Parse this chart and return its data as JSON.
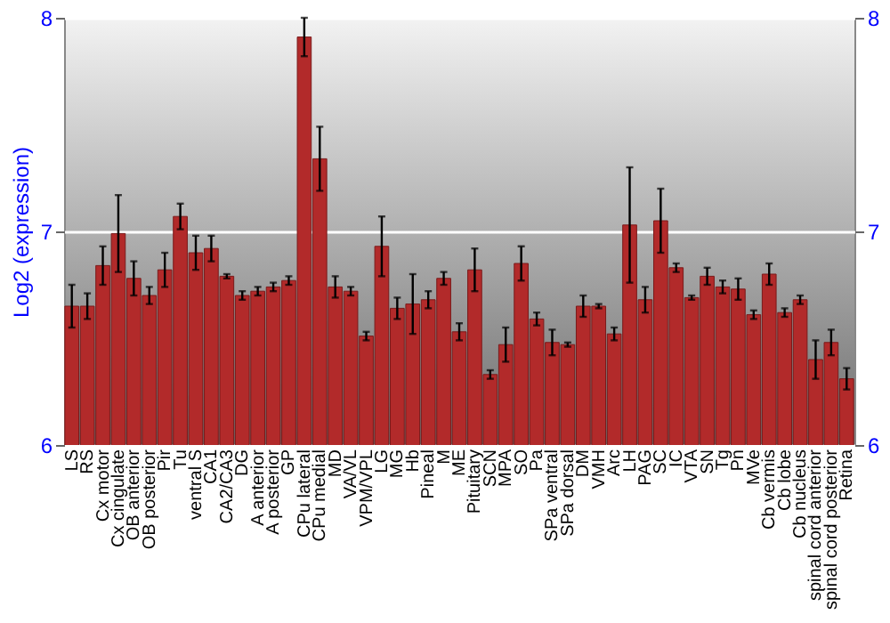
{
  "chart_data": {
    "type": "bar",
    "ylabel": "Log2 (expression)",
    "categories": [
      "LS",
      "RS",
      "Cx motor",
      "Cx cingulate",
      "OB anterior",
      "OB posterior",
      "Pir",
      "Tu",
      "ventral S",
      "CA1",
      "CA2/CA3",
      "DG",
      "A anterior",
      "A posterior",
      "GP",
      "CPu lateral",
      "CPu medial",
      "MD",
      "VA/VL",
      "VPM/VPL",
      "LG",
      "MG",
      "Hb",
      "Pineal",
      "M",
      "ME",
      "Pituitary",
      "SCN",
      "MPA",
      "SO",
      "Pa",
      "SPa ventral",
      "SPa dorsal",
      "DM",
      "VMH",
      "Arc",
      "LH",
      "PAG",
      "SC",
      "IC",
      "VTA",
      "SN",
      "Tg",
      "Pn",
      "MVe",
      "Cb vermis",
      "Cb lobe",
      "Cb nucleus",
      "spinal cord anterior",
      "spinal cord posterior",
      "Retina"
    ],
    "values": [
      6.65,
      6.65,
      6.84,
      6.99,
      6.78,
      6.7,
      6.82,
      7.07,
      6.9,
      6.92,
      6.79,
      6.7,
      6.72,
      6.74,
      6.77,
      7.91,
      7.34,
      6.74,
      6.72,
      6.51,
      6.93,
      6.64,
      6.66,
      6.68,
      6.78,
      6.53,
      6.82,
      6.33,
      6.47,
      6.85,
      6.59,
      6.48,
      6.47,
      6.65,
      6.65,
      6.52,
      7.03,
      6.68,
      7.05,
      6.83,
      6.69,
      6.79,
      6.74,
      6.73,
      6.61,
      6.8,
      6.62,
      6.68,
      6.4,
      6.48,
      6.31
    ],
    "errors": [
      0.1,
      0.06,
      0.09,
      0.18,
      0.08,
      0.04,
      0.08,
      0.06,
      0.08,
      0.06,
      0.01,
      0.02,
      0.02,
      0.02,
      0.02,
      0.09,
      0.15,
      0.05,
      0.02,
      0.02,
      0.14,
      0.05,
      0.14,
      0.04,
      0.03,
      0.04,
      0.1,
      0.02,
      0.08,
      0.08,
      0.03,
      0.06,
      0.01,
      0.05,
      0.01,
      0.03,
      0.27,
      0.06,
      0.15,
      0.02,
      0.01,
      0.04,
      0.03,
      0.05,
      0.02,
      0.05,
      0.02,
      0.02,
      0.09,
      0.06,
      0.05
    ],
    "color": "#b22a2a",
    "ylim": [
      6,
      8
    ],
    "yticks": [
      6,
      7,
      8
    ],
    "y2lim": [
      6,
      8
    ],
    "y2ticks": [
      6,
      7,
      8
    ],
    "grid": "y"
  }
}
